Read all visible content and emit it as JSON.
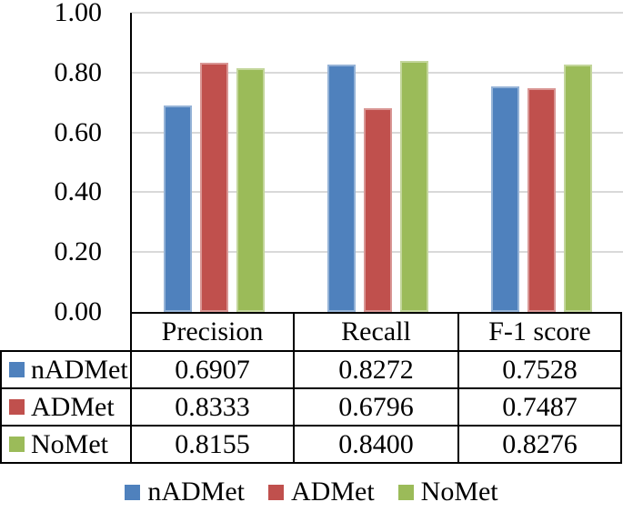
{
  "chart_data": {
    "type": "bar",
    "title": "",
    "xlabel": "",
    "ylabel": "",
    "categories": [
      "Precision",
      "Recall",
      "F-1 score"
    ],
    "series": [
      {
        "name": "nADMet",
        "color": "#4F81BD",
        "border_color": "#95B3D7",
        "values": [
          0.6907,
          0.8272,
          0.7528
        ]
      },
      {
        "name": "ADMet",
        "color": "#C0504D",
        "border_color": "#D99694",
        "values": [
          0.8333,
          0.6796,
          0.7487
        ]
      },
      {
        "name": "NoMet",
        "color": "#9BBB59",
        "border_color": "#C3D69B",
        "values": [
          0.8155,
          0.84,
          0.8276
        ]
      }
    ],
    "ylim": [
      0.0,
      1.0
    ],
    "yticks": [
      0.0,
      0.2,
      0.4,
      0.6,
      0.8,
      1.0
    ],
    "ytick_labels": [
      "0.00",
      "0.20",
      "0.40",
      "0.60",
      "0.80",
      "1.00"
    ],
    "grid": true,
    "gridline_color": "#D9D9D9",
    "axis_color": "#000000",
    "legend_position": "bottom"
  },
  "data_table": {
    "column_headers": [
      "Precision",
      "Recall",
      "F-1 score"
    ],
    "rows": [
      {
        "label": "nADMet",
        "swatch_color": "#4F81BD",
        "values": [
          "0.6907",
          "0.8272",
          "0.7528"
        ]
      },
      {
        "label": "ADMet",
        "swatch_color": "#C0504D",
        "values": [
          "0.8333",
          "0.6796",
          "0.7487"
        ]
      },
      {
        "label": "NoMet",
        "swatch_color": "#9BBB59",
        "values": [
          "0.8155",
          "0.8400",
          "0.8276"
        ]
      }
    ]
  },
  "legend": {
    "items": [
      {
        "label": "nADMet",
        "color": "#4F81BD"
      },
      {
        "label": "ADMet",
        "color": "#C0504D"
      },
      {
        "label": "NoMet",
        "color": "#9BBB59"
      }
    ]
  }
}
